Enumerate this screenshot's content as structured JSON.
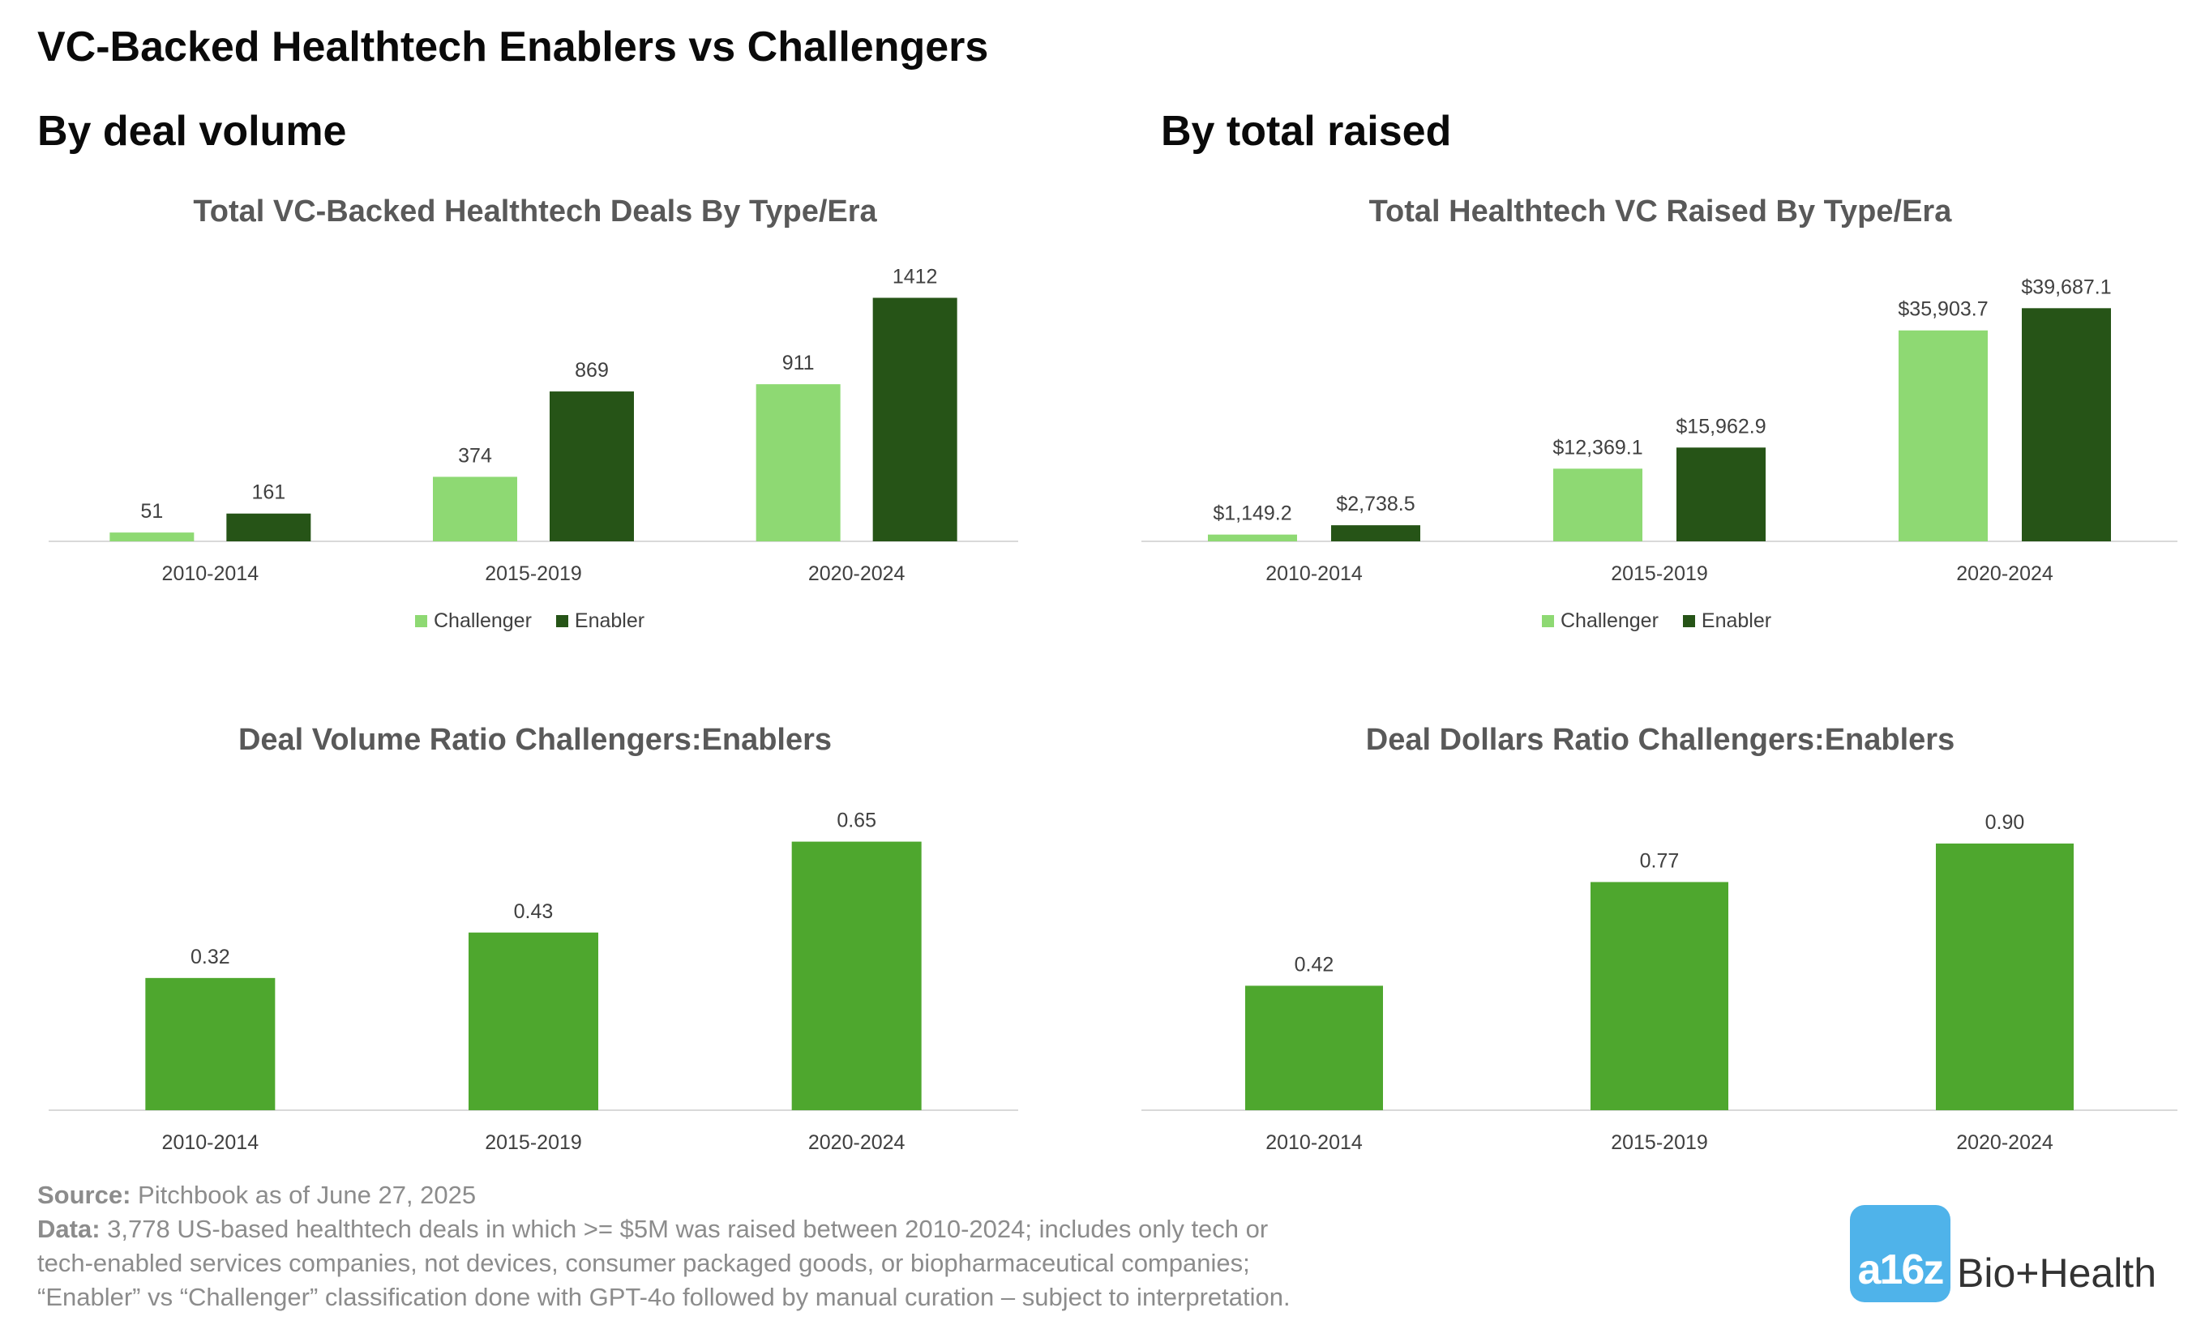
{
  "page": {
    "title": "VC-Backed Healthtech Enablers vs Challengers",
    "left_section": "By deal volume",
    "right_section": "By total raised",
    "footer": {
      "source_label": "Source:",
      "source_text": "Pitchbook as of June 27, 2025",
      "data_label": "Data:",
      "data_line1": "3,778 US-based healthtech deals in which >= $5M was raised between 2010-2024; includes only tech or",
      "data_line2": "tech-enabled services companies, not devices, consumer packaged goods, or biopharmaceutical companies;",
      "data_line3": "“Enabler” vs “Challenger” classification done with GPT-4o followed by manual curation – subject to interpretation."
    },
    "logo": {
      "mark": "a16z",
      "text": "Bio+Health"
    }
  },
  "chart_data": [
    {
      "id": "deals",
      "type": "bar",
      "title": "Total VC-Backed Healthtech Deals By Type/Era",
      "categories": [
        "2010-2014",
        "2015-2019",
        "2020-2024"
      ],
      "series": [
        {
          "name": "Challenger",
          "values": [
            51,
            374,
            911
          ],
          "labels": [
            "51",
            "374",
            "911"
          ],
          "color": "#8ed973"
        },
        {
          "name": "Enabler",
          "values": [
            161,
            869,
            1412
          ],
          "labels": [
            "161",
            "869",
            "1412"
          ],
          "color": "#265417"
        }
      ],
      "ylim": [
        0,
        1560
      ],
      "legend": "bottom"
    },
    {
      "id": "raised",
      "type": "bar",
      "title": "Total Healthtech VC Raised By Type/Era",
      "categories": [
        "2010-2014",
        "2015-2019",
        "2020-2024"
      ],
      "series": [
        {
          "name": "Challenger",
          "values": [
            1149.2,
            12369.1,
            35903.7
          ],
          "labels": [
            "$1,149.2",
            "$12,369.1",
            "$35,903.7"
          ],
          "color": "#8ed973"
        },
        {
          "name": "Enabler",
          "values": [
            2738.5,
            15962.9,
            39687.1
          ],
          "labels": [
            "$2,738.5",
            "$15,962.9",
            "$39,687.1"
          ],
          "color": "#265417"
        }
      ],
      "ylim": [
        0,
        45800
      ],
      "legend": "bottom"
    },
    {
      "id": "volume_ratio",
      "type": "bar",
      "title": "Deal Volume Ratio Challengers:Enablers",
      "categories": [
        "2010-2014",
        "2015-2019",
        "2020-2024"
      ],
      "series": [
        {
          "values": [
            0.32,
            0.43,
            0.65
          ],
          "labels": [
            "0.32",
            "0.43",
            "0.65"
          ],
          "color": "#4ea72e"
        }
      ],
      "ylim": [
        0,
        0.71
      ]
    },
    {
      "id": "dollars_ratio",
      "type": "bar",
      "title": "Deal Dollars Ratio Challengers:Enablers",
      "categories": [
        "2010-2014",
        "2015-2019",
        "2020-2024"
      ],
      "series": [
        {
          "values": [
            0.42,
            0.77,
            0.9
          ],
          "labels": [
            "0.42",
            "0.77",
            "0.90"
          ],
          "color": "#4ea72e"
        }
      ],
      "ylim": [
        0,
        0.99
      ]
    }
  ]
}
